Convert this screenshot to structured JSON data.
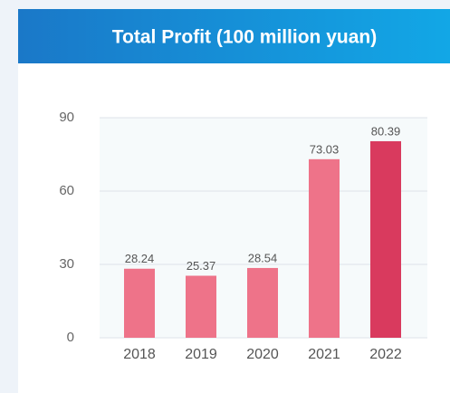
{
  "chart_data": {
    "type": "bar",
    "title": "Total Profit (100 million yuan)",
    "categories": [
      "2018",
      "2019",
      "2020",
      "2021",
      "2022"
    ],
    "values": [
      28.24,
      25.37,
      28.54,
      73.03,
      80.39
    ],
    "colors": [
      "#ee7389",
      "#ee7389",
      "#ee7389",
      "#ee7389",
      "#d93a5e"
    ],
    "ylim": [
      0,
      90
    ],
    "yticks": [
      0,
      30,
      60,
      90
    ],
    "grid": true
  }
}
